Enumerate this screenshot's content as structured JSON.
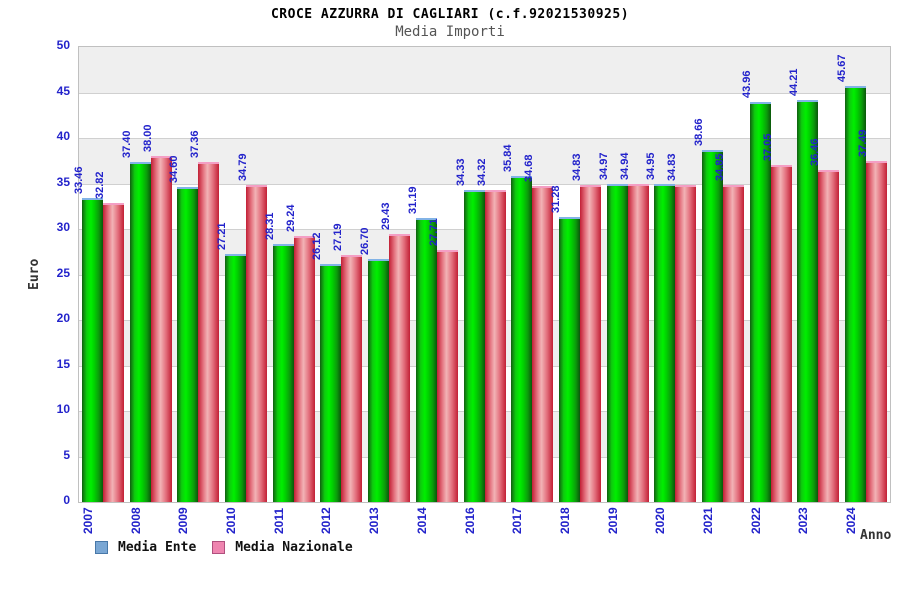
{
  "chart_data": {
    "type": "bar",
    "title": "CROCE AZZURRA DI CAGLIARI (c.f.92021530925)",
    "subtitle": "Media Importi",
    "xlabel": "Anno",
    "ylabel": "Euro",
    "ylim": [
      0,
      50
    ],
    "ytick_step": 5,
    "grid": true,
    "legend_position": "bottom-left",
    "value_label_format": "2-decimals",
    "categories": [
      "2007",
      "2008",
      "2009",
      "2010",
      "2011",
      "2012",
      "2013",
      "2014",
      "2016",
      "2017",
      "2018",
      "2019",
      "2020",
      "2021",
      "2022",
      "2023",
      "2024"
    ],
    "series": [
      {
        "name": "Media Ente",
        "values": [
          33.46,
          37.4,
          34.6,
          27.21,
          28.31,
          26.12,
          26.7,
          31.19,
          34.33,
          35.84,
          31.28,
          34.97,
          34.95,
          38.66,
          43.96,
          44.21,
          45.67
        ]
      },
      {
        "name": "Media Nazionale",
        "values": [
          32.82,
          38.0,
          37.36,
          34.79,
          29.24,
          27.19,
          29.43,
          27.71,
          34.32,
          34.68,
          34.83,
          34.94,
          34.83,
          34.85,
          37.05,
          36.46,
          37.49
        ]
      }
    ],
    "colors": {
      "label_blue": "#2323cb",
      "band_gray": "#efefef",
      "band_white": "#ffffff",
      "grid_line": "#d0d0d0",
      "plot_border": "#c0c0c0",
      "green_bar_gradient": [
        "#115e11",
        "#0ecb0e",
        "#00ef00",
        "#00d300",
        "#0b9b0b",
        "#0b550b"
      ],
      "green_bar_cap": "#82b3e6",
      "red_bar_gradient": [
        "#c21f35",
        "#e4727f",
        "#f2b3b6",
        "#e4727f",
        "#c21f35"
      ],
      "red_bar_cap": "#f49ec4",
      "legend_ente_swatch": "#7aa7d4",
      "legend_ente_swatch_border": "#4878a8",
      "legend_nazionale_swatch": "#ef85b0",
      "legend_nazionale_swatch_border": "#b0507e"
    }
  }
}
